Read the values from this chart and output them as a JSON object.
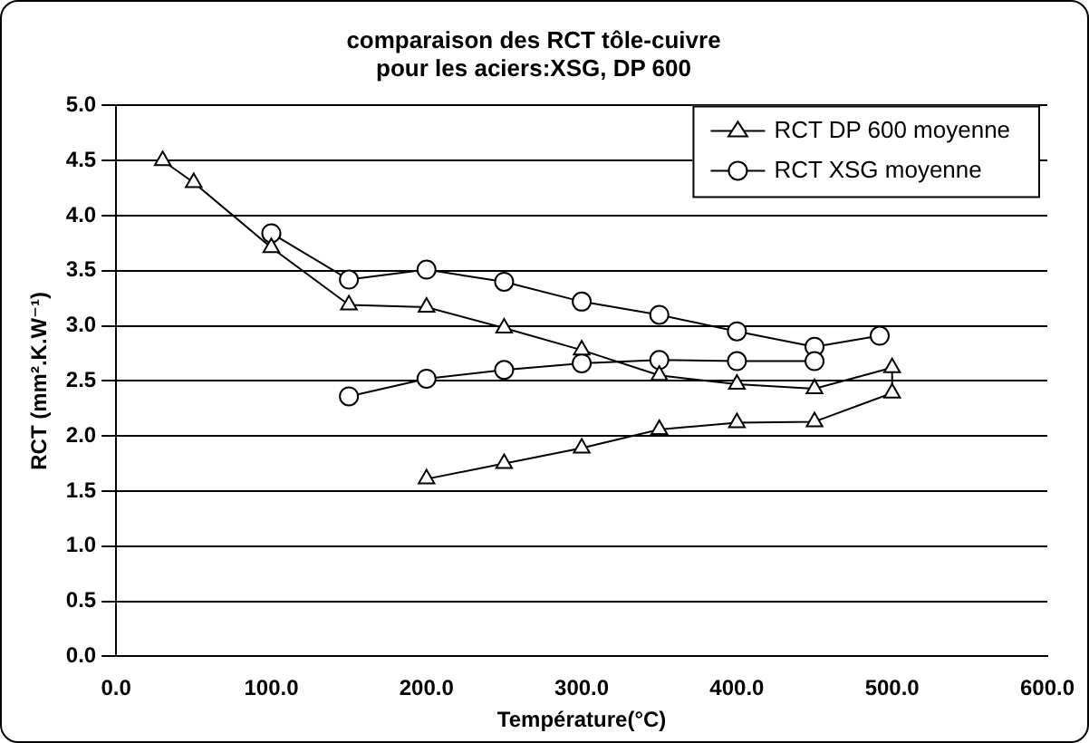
{
  "chart_data": {
    "type": "line",
    "title": "comparaison des RCT tôle-cuivre\npour les aciers:XSG, DP 600",
    "xlabel": "Température(°C)",
    "ylabel": "RCT (mm².K.W⁻¹)",
    "series": [
      {
        "name": "RCT DP 600 moyenne",
        "color": "#000000",
        "marker": "triangle",
        "x": [
          30,
          50,
          100,
          150,
          200,
          250,
          300,
          350,
          400,
          450,
          500,
          500,
          450,
          400,
          350,
          300,
          250,
          200
        ],
        "values": [
          4.5,
          4.3,
          3.71,
          3.19,
          3.17,
          2.98,
          2.78,
          2.55,
          2.47,
          2.43,
          2.62,
          2.39,
          2.13,
          2.12,
          2.06,
          1.89,
          1.75,
          1.61
        ]
      },
      {
        "name": "RCT XSG moyenne",
        "color": "#000000",
        "marker": "circle",
        "x": [
          100,
          150,
          200,
          250,
          300,
          350,
          400,
          450,
          492,
          null,
          450,
          400,
          350,
          300,
          250,
          200,
          150
        ],
        "values": [
          3.84,
          3.42,
          3.51,
          3.4,
          3.22,
          3.1,
          2.95,
          2.81,
          2.91,
          null,
          2.68,
          2.68,
          2.69,
          2.66,
          2.6,
          2.52,
          2.36
        ]
      }
    ],
    "xlim": [
      0,
      600
    ],
    "xticks": [
      {
        "value": 0,
        "label": "0.0"
      },
      {
        "value": 100,
        "label": "100.0"
      },
      {
        "value": 200,
        "label": "200.0"
      },
      {
        "value": 300,
        "label": "300.0"
      },
      {
        "value": 400,
        "label": "400.0"
      },
      {
        "value": 500,
        "label": "500.0"
      },
      {
        "value": 600,
        "label": "600.0"
      }
    ],
    "ylim": [
      0,
      5
    ],
    "yticks": [
      {
        "value": 0,
        "label": "0.0"
      },
      {
        "value": 0.5,
        "label": "0.5"
      },
      {
        "value": 1,
        "label": "1.0"
      },
      {
        "value": 1.5,
        "label": "1.5"
      },
      {
        "value": 2,
        "label": "2.0"
      },
      {
        "value": 2.5,
        "label": "2.5"
      },
      {
        "value": 3,
        "label": "3.0"
      },
      {
        "value": 3.5,
        "label": "3.5"
      },
      {
        "value": 4,
        "label": "4.0"
      },
      {
        "value": 4.5,
        "label": "4.5"
      },
      {
        "value": 5,
        "label": "5.0"
      }
    ],
    "grid": "y",
    "legend": "top right"
  }
}
